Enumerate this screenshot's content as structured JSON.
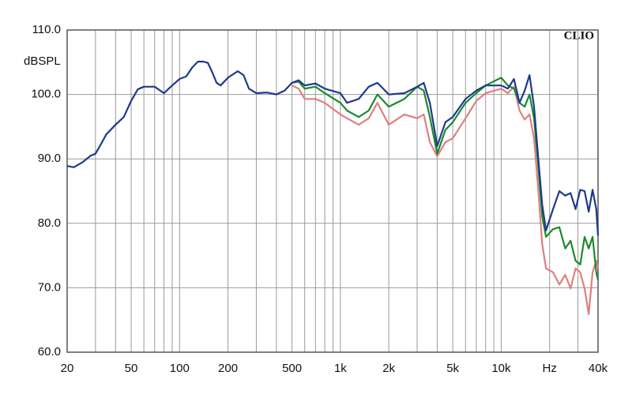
{
  "chart_data": {
    "type": "line",
    "y_label": "dBSPL",
    "annotation": "CLIO",
    "log_x": true,
    "grid": true,
    "xlim": [
      20,
      40000
    ],
    "ylim": [
      60,
      110
    ],
    "xticks": [
      20,
      50,
      100,
      200,
      500,
      {
        "value": 1000,
        "label": "1k"
      },
      {
        "value": 2000,
        "label": "2k"
      },
      {
        "value": 5000,
        "label": "5k"
      },
      {
        "value": 10000,
        "label": "10k"
      },
      {
        "value": 20000,
        "label": "Hz"
      },
      {
        "value": 40000,
        "label": "40k"
      }
    ],
    "x_grid_minor": [
      30,
      40,
      60,
      70,
      80,
      90,
      300,
      400,
      600,
      700,
      800,
      900,
      3000,
      4000,
      6000,
      7000,
      8000,
      9000,
      30000
    ],
    "yticks": [
      {
        "value": 60,
        "label": "60.0"
      },
      {
        "value": 70,
        "label": "70.0"
      },
      {
        "value": 80,
        "label": "80.0"
      },
      {
        "value": 90,
        "label": "90.0"
      },
      {
        "value": 100,
        "label": "100.0"
      },
      {
        "value": 110,
        "label": "110.0"
      }
    ],
    "x": [
      20,
      22,
      25,
      28,
      30,
      33,
      35,
      40,
      45,
      50,
      55,
      60,
      70,
      80,
      90,
      100,
      110,
      120,
      130,
      140,
      150,
      160,
      170,
      180,
      200,
      230,
      250,
      270,
      300,
      350,
      400,
      450,
      500,
      550,
      600,
      700,
      800,
      1000,
      1100,
      1300,
      1500,
      1700,
      2000,
      2500,
      3000,
      3300,
      3600,
      4000,
      4500,
      5000,
      6000,
      7000,
      8000,
      10000,
      11000,
      12000,
      13000,
      14000,
      15000,
      16000,
      17000,
      18000,
      19000,
      21000,
      23000,
      25000,
      27000,
      29000,
      31000,
      33000,
      35000,
      37000,
      39000,
      40000
    ],
    "series": [
      {
        "color": "#e07f7f",
        "values": [
          null,
          null,
          null,
          null,
          null,
          null,
          null,
          null,
          null,
          null,
          null,
          null,
          null,
          null,
          null,
          null,
          null,
          null,
          null,
          null,
          null,
          null,
          null,
          null,
          null,
          null,
          null,
          null,
          null,
          null,
          null,
          null,
          101.4,
          100.9,
          99.3,
          99.3,
          98.7,
          96.9,
          96.3,
          95.3,
          96.3,
          98.7,
          95.3,
          96.9,
          96.3,
          96.9,
          92.6,
          90.4,
          92.6,
          93.2,
          96.3,
          99,
          100.2,
          100.9,
          100.2,
          101.2,
          97.5,
          96.1,
          96.9,
          93.2,
          85.2,
          76.7,
          73,
          72.4,
          70.5,
          72,
          69.9,
          73,
          72.4,
          69.9,
          65.9,
          72.4,
          74.2,
          73
        ]
      },
      {
        "color": "#1a8a2e",
        "values": [
          null,
          null,
          null,
          null,
          null,
          null,
          null,
          null,
          null,
          null,
          null,
          null,
          null,
          null,
          null,
          null,
          null,
          null,
          null,
          null,
          null,
          null,
          null,
          null,
          null,
          null,
          null,
          null,
          null,
          null,
          null,
          null,
          101.8,
          102,
          100.9,
          101.2,
          100.2,
          98.7,
          97.5,
          96.5,
          97.5,
          100,
          98.1,
          99.3,
          101.2,
          100.6,
          96.5,
          90.8,
          94.5,
          95.7,
          98.7,
          100.2,
          101.4,
          102.6,
          101.4,
          100.9,
          98.7,
          98.1,
          100,
          96.3,
          88.9,
          81,
          77.9,
          79.1,
          79.4,
          76.1,
          77.3,
          74.2,
          73.6,
          77.9,
          76.1,
          77.9,
          72.4,
          71.2
        ]
      },
      {
        "color": "#1f3a8c",
        "values": [
          88.9,
          88.7,
          89.5,
          90.5,
          90.8,
          92.6,
          93.8,
          95.3,
          96.5,
          99,
          100.8,
          101.2,
          101.2,
          100.2,
          101.4,
          102.4,
          102.8,
          104.2,
          105.1,
          105.1,
          104.9,
          103.4,
          101.8,
          101.4,
          102.6,
          103.6,
          103,
          100.9,
          100.2,
          100.3,
          100,
          100.6,
          101.8,
          102.2,
          101.4,
          101.7,
          100.9,
          100.2,
          98.7,
          99.3,
          101.2,
          101.8,
          100,
          100.2,
          101.2,
          101.8,
          98.7,
          92,
          95.7,
          96.5,
          99.3,
          100.6,
          101.4,
          101.4,
          100.9,
          102.4,
          98.7,
          100.6,
          103,
          98.1,
          90.1,
          82.8,
          78.9,
          82.2,
          85,
          84.3,
          84.7,
          82.2,
          85.2,
          85,
          81.8,
          85.2,
          82.2,
          78.1
        ]
      }
    ]
  }
}
